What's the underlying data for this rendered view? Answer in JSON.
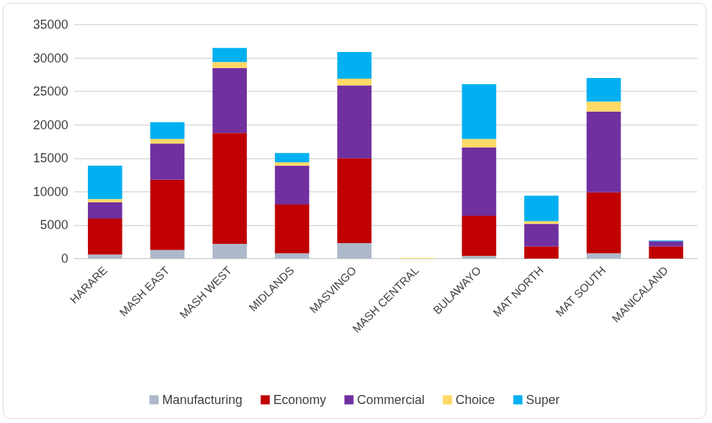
{
  "chart_data": {
    "type": "bar",
    "stacked": true,
    "categories": [
      "HARARE",
      "MASH EAST",
      "MASH WEST",
      "MIDLANDS",
      "MASVINGO",
      "MASH CENTRAL",
      "BULAWAYO",
      "MAT NORTH",
      "MAT SOUTH",
      "MANICALAND"
    ],
    "series": [
      {
        "name": "Manufacturing",
        "color": "#adb9ca",
        "values": [
          600,
          1300,
          2200,
          800,
          2300,
          0,
          400,
          0,
          800,
          0
        ]
      },
      {
        "name": "Economy",
        "color": "#c00000",
        "values": [
          5400,
          10500,
          16600,
          7300,
          12700,
          0,
          6000,
          1800,
          9100,
          1800
        ]
      },
      {
        "name": "Commercial",
        "color": "#7030a0",
        "values": [
          2400,
          5400,
          9700,
          5800,
          10900,
          0,
          10200,
          3400,
          12100,
          800
        ]
      },
      {
        "name": "Choice",
        "color": "#ffd966",
        "values": [
          500,
          700,
          900,
          500,
          1000,
          100,
          1300,
          400,
          1500,
          0
        ]
      },
      {
        "name": "Super",
        "color": "#00b0f0",
        "values": [
          5000,
          2500,
          2100,
          1400,
          4000,
          0,
          8200,
          3800,
          3500,
          100
        ]
      }
    ],
    "ylim": [
      0,
      35000
    ],
    "yticks": [
      0,
      5000,
      10000,
      15000,
      20000,
      25000,
      30000,
      35000
    ],
    "grid": "y",
    "legend": "bottom"
  }
}
